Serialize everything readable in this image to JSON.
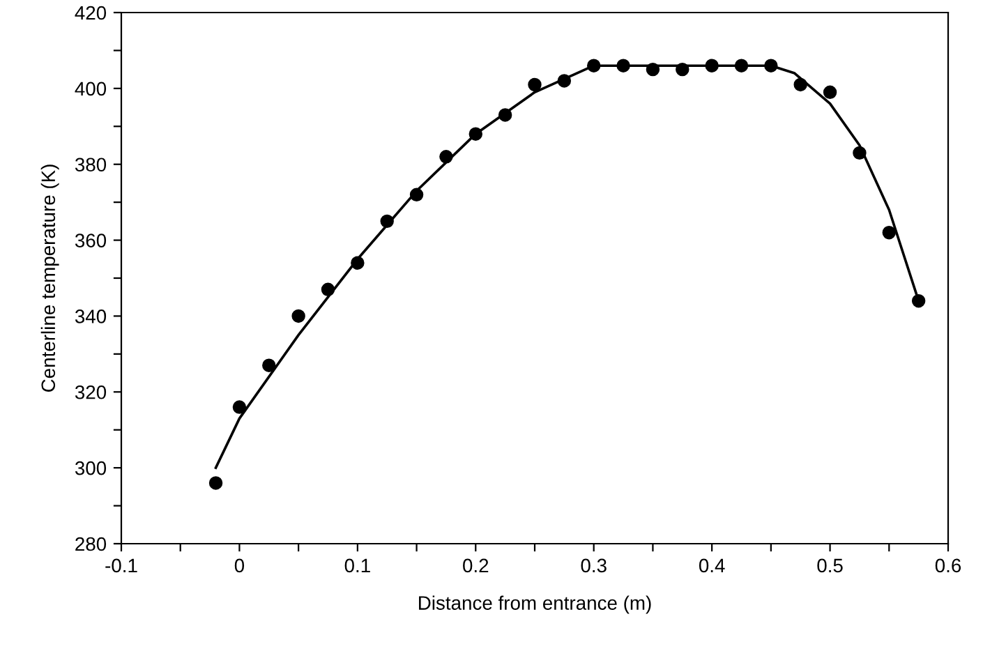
{
  "chart_data": {
    "type": "scatter",
    "xlabel": "Distance from entrance (m)",
    "ylabel": "Centerline temperature (K)",
    "xlim": [
      -0.1,
      0.6
    ],
    "ylim": [
      280,
      420
    ],
    "xticks": [
      -0.1,
      {
        "value": -0.05,
        "label": null
      },
      0,
      {
        "value": 0.05,
        "label": null
      },
      0.1,
      {
        "value": 0.15,
        "label": null
      },
      0.2,
      {
        "value": 0.25,
        "label": null
      },
      0.3,
      {
        "value": 0.35,
        "label": null
      },
      0.4,
      {
        "value": 0.45,
        "label": null
      },
      0.5,
      {
        "value": 0.55,
        "label": null
      },
      0.6
    ],
    "yticks": [
      280,
      {
        "value": 290,
        "label": null
      },
      300,
      {
        "value": 310,
        "label": null
      },
      320,
      {
        "value": 330,
        "label": null
      },
      340,
      {
        "value": 350,
        "label": null
      },
      360,
      {
        "value": 370,
        "label": null
      },
      380,
      {
        "value": 390,
        "label": null
      },
      400,
      {
        "value": 410,
        "label": null
      },
      420
    ],
    "grid": false,
    "series": [
      {
        "color": "#000000",
        "marker": "circle",
        "x": [
          -0.02,
          0,
          0.025,
          0.05,
          0.075,
          0.1,
          0.125,
          0.15,
          0.175,
          0.2,
          0.225,
          0.25,
          0.275,
          0.3,
          0.325,
          0.35,
          0.375,
          0.4,
          0.425,
          0.45,
          0.475,
          0.5,
          0.525,
          0.55,
          0.575
        ],
        "values": [
          296,
          316,
          327,
          340,
          347,
          354,
          365,
          372,
          382,
          388,
          393,
          401,
          402,
          406,
          406,
          405,
          405,
          406,
          406,
          406,
          401,
          399,
          383,
          362,
          344
        ]
      },
      {
        "type": "line",
        "color": "#000000",
        "marker": "none",
        "line_style": "solid",
        "x": [
          -0.02,
          0,
          0.05,
          0.1,
          0.15,
          0.2,
          0.25,
          0.3,
          0.35,
          0.4,
          0.45,
          0.47,
          0.5,
          0.525,
          0.55,
          0.575
        ],
        "values": [
          300,
          313,
          335,
          355,
          373,
          388,
          399,
          406,
          406,
          406,
          406,
          404,
          396,
          385,
          368,
          344
        ]
      }
    ]
  }
}
